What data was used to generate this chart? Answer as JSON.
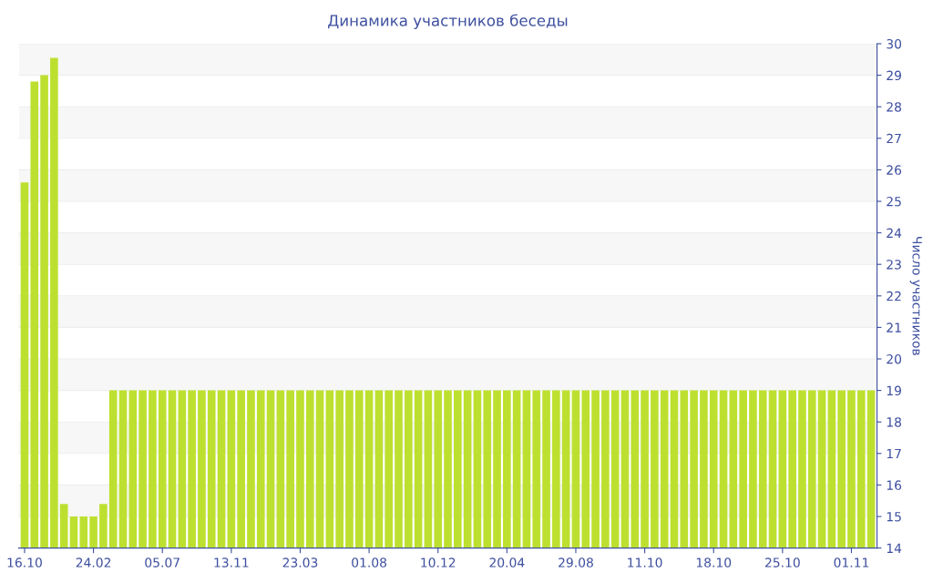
{
  "chart_data": {
    "type": "bar",
    "title": "Динамика участников беседы",
    "ylabel": "Число участников",
    "categories": [
      "16.10",
      null,
      null,
      null,
      null,
      null,
      null,
      "24.02",
      null,
      null,
      null,
      null,
      null,
      null,
      "05.07",
      null,
      null,
      null,
      null,
      null,
      null,
      "13.11",
      null,
      null,
      null,
      null,
      null,
      null,
      "23.03",
      null,
      null,
      null,
      null,
      null,
      null,
      "01.08",
      null,
      null,
      null,
      null,
      null,
      null,
      "10.12",
      null,
      null,
      null,
      null,
      null,
      null,
      "20.04",
      null,
      null,
      null,
      null,
      null,
      null,
      "29.08",
      null,
      null,
      null,
      null,
      null,
      null,
      "11.10",
      null,
      null,
      null,
      null,
      null,
      null,
      "18.10",
      null,
      null,
      null,
      null,
      null,
      null,
      "25.10",
      null,
      null,
      null,
      null,
      null,
      null,
      "01.11",
      null,
      null
    ],
    "values": [
      25.6,
      28.8,
      29.0,
      29.55,
      15.4,
      15,
      15,
      15,
      15.4,
      19,
      19,
      19,
      19,
      19,
      19,
      19,
      19,
      19,
      19,
      19,
      19,
      19,
      19,
      19,
      19,
      19,
      19,
      19,
      19,
      19,
      19,
      19,
      19,
      19,
      19,
      19,
      19,
      19,
      19,
      19,
      19,
      19,
      19,
      19,
      19,
      19,
      19,
      19,
      19,
      19,
      19,
      19,
      19,
      19,
      19,
      19,
      19,
      19,
      19,
      19,
      19,
      19,
      19,
      19,
      19,
      19,
      19,
      19,
      19,
      19,
      19,
      19,
      19,
      19,
      19,
      19,
      19,
      19,
      19,
      19,
      19,
      19,
      19,
      19,
      19,
      19,
      19
    ],
    "color": "#bde030",
    "ylim": [
      14,
      30
    ],
    "yticks": [
      14,
      15,
      16,
      17,
      18,
      19,
      20,
      21,
      22,
      23,
      24,
      25,
      26,
      27,
      28,
      29,
      30
    ],
    "grid": "y"
  }
}
